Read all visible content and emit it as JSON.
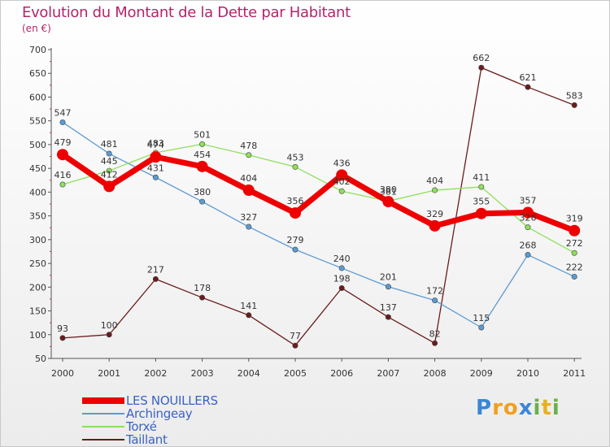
{
  "chart_data": {
    "type": "line",
    "title": "Evolution du Montant de la Dette par Habitant",
    "subtitle": "(en €)",
    "categories": [
      "2000",
      "2001",
      "2002",
      "2003",
      "2004",
      "2005",
      "2006",
      "2007",
      "2008",
      "2009",
      "2010",
      "2011"
    ],
    "ylim": [
      50,
      700
    ],
    "yticks": [
      50,
      100,
      150,
      200,
      250,
      300,
      350,
      400,
      450,
      500,
      550,
      600,
      650,
      700
    ],
    "grid": false,
    "legend_position": "bottom-left",
    "series": [
      {
        "name": "LES NOUILLERS",
        "color": "#ee0000",
        "values": [
          479,
          412,
          474,
          454,
          404,
          356,
          436,
          380,
          329,
          355,
          357,
          319
        ]
      },
      {
        "name": "Archingeay",
        "color": "#5b9bd5",
        "values": [
          547,
          481,
          431,
          380,
          327,
          279,
          240,
          201,
          172,
          115,
          268,
          222
        ]
      },
      {
        "name": "Torxé",
        "color": "#8ee05a",
        "values": [
          416,
          445,
          483,
          501,
          478,
          453,
          402,
          381,
          404,
          411,
          326,
          272
        ]
      },
      {
        "name": "Taillant",
        "color": "#6b1b1b",
        "values": [
          93,
          100,
          217,
          178,
          141,
          77,
          198,
          137,
          82,
          662,
          621,
          583
        ]
      }
    ]
  },
  "logo": {
    "text": "Proxiti",
    "letters": [
      "P",
      "r",
      "o",
      "x",
      "i",
      "t",
      "i"
    ],
    "colors": [
      "#3a86d6",
      "#f0a020",
      "#f0a020",
      "#3a86d6",
      "#6ab04c",
      "#e8b020",
      "#6ab04c"
    ]
  }
}
